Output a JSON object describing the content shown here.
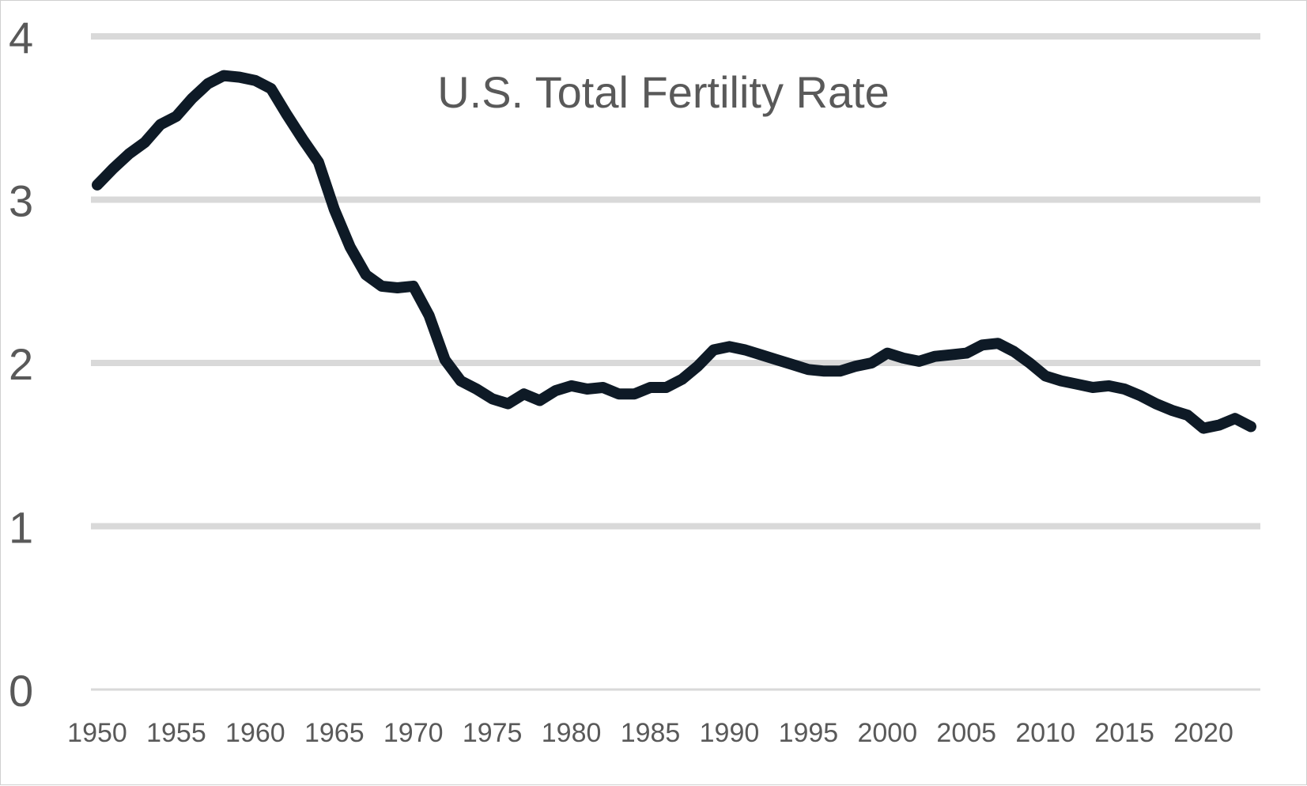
{
  "chart_data": {
    "type": "line",
    "title": "U.S. Total Fertility Rate",
    "xlabel": "",
    "ylabel": "",
    "xlim": [
      1950,
      2023
    ],
    "ylim": [
      0,
      4
    ],
    "y_ticks": [
      "0",
      "1",
      "2",
      "3",
      "4"
    ],
    "x_ticks": [
      "1950",
      "1955",
      "1960",
      "1965",
      "1970",
      "1975",
      "1980",
      "1985",
      "1990",
      "1995",
      "2000",
      "2005",
      "2010",
      "2015",
      "2020"
    ],
    "grid": true,
    "legend": "none",
    "line_color": "#0e1a26",
    "grid_color": "#d9d9d9",
    "text_color": "#595959",
    "series": [
      {
        "x": [
          1950,
          1951,
          1952,
          1953,
          1954,
          1955,
          1956,
          1957,
          1958,
          1959,
          1960,
          1961,
          1962,
          1963,
          1964,
          1965,
          1966,
          1967,
          1968,
          1969,
          1970,
          1971,
          1972,
          1973,
          1974,
          1975,
          1976,
          1977,
          1978,
          1979,
          1980,
          1981,
          1982,
          1983,
          1984,
          1985,
          1986,
          1987,
          1988,
          1989,
          1990,
          1991,
          1992,
          1993,
          1994,
          1995,
          1996,
          1997,
          1998,
          1999,
          2000,
          2001,
          2002,
          2003,
          2004,
          2005,
          2006,
          2007,
          2008,
          2009,
          2010,
          2011,
          2012,
          2013,
          2014,
          2015,
          2016,
          2017,
          2018,
          2019,
          2020,
          2021,
          2022,
          2023
        ],
        "values": [
          3.09,
          3.19,
          3.28,
          3.35,
          3.46,
          3.51,
          3.62,
          3.71,
          3.76,
          3.75,
          3.73,
          3.68,
          3.52,
          3.37,
          3.23,
          2.94,
          2.71,
          2.54,
          2.47,
          2.46,
          2.47,
          2.29,
          2.02,
          1.89,
          1.84,
          1.78,
          1.75,
          1.81,
          1.77,
          1.83,
          1.86,
          1.84,
          1.85,
          1.81,
          1.81,
          1.85,
          1.85,
          1.9,
          1.98,
          2.08,
          2.1,
          2.08,
          2.05,
          2.02,
          1.99,
          1.96,
          1.95,
          1.95,
          1.98,
          2.0,
          2.06,
          2.03,
          2.01,
          2.04,
          2.05,
          2.06,
          2.11,
          2.12,
          2.07,
          2.0,
          1.92,
          1.89,
          1.87,
          1.85,
          1.86,
          1.84,
          1.8,
          1.75,
          1.71,
          1.68,
          1.6,
          1.62,
          1.66,
          1.61
        ]
      }
    ]
  }
}
